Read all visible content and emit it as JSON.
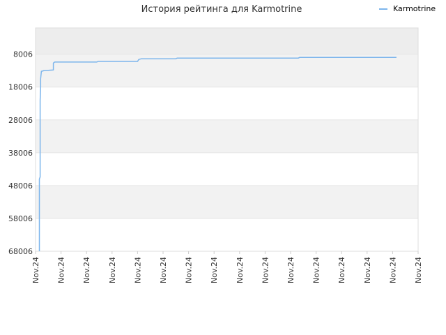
{
  "chart_data": {
    "type": "line",
    "title": "История рейтинга для Karmotrine",
    "xlabel": "",
    "ylabel": "",
    "y_inverted": true,
    "ylim": [
      68006,
      0
    ],
    "yticks": [
      8006,
      18006,
      28006,
      38006,
      48006,
      58006,
      68006
    ],
    "xticks": [
      "Nov.24",
      "Nov.24",
      "Nov.24",
      "Nov.24",
      "Nov.24",
      "Nov.24",
      "Nov.24",
      "Nov.24",
      "Nov.24",
      "Nov.24",
      "Nov.24",
      "Nov.24",
      "Nov.24",
      "Nov.24",
      "Nov.24",
      "Nov.24"
    ],
    "x_domain": [
      0,
      15
    ],
    "grid": true,
    "legend_position": "top-right",
    "series": [
      {
        "name": "Karmotrine",
        "color": "#7cb5ec",
        "points": [
          {
            "x": 0.15,
            "y": 68006
          },
          {
            "x": 0.15,
            "y": 46000
          },
          {
            "x": 0.18,
            "y": 45400
          },
          {
            "x": 0.18,
            "y": 22000
          },
          {
            "x": 0.2,
            "y": 18000
          },
          {
            "x": 0.2,
            "y": 15500
          },
          {
            "x": 0.23,
            "y": 13200
          },
          {
            "x": 0.3,
            "y": 13100
          },
          {
            "x": 0.3,
            "y": 13000
          },
          {
            "x": 0.7,
            "y": 12800
          },
          {
            "x": 0.7,
            "y": 10700
          },
          {
            "x": 0.75,
            "y": 10400
          },
          {
            "x": 2.4,
            "y": 10400
          },
          {
            "x": 2.45,
            "y": 10200
          },
          {
            "x": 4.0,
            "y": 10200
          },
          {
            "x": 4.05,
            "y": 9600
          },
          {
            "x": 4.15,
            "y": 9400
          },
          {
            "x": 5.5,
            "y": 9400
          },
          {
            "x": 5.55,
            "y": 9200
          },
          {
            "x": 10.3,
            "y": 9200
          },
          {
            "x": 10.35,
            "y": 9000
          },
          {
            "x": 14.15,
            "y": 9000
          }
        ]
      }
    ],
    "colors": {
      "band_alt": "#f2f2f2",
      "band_top": "#ededed",
      "grid": "#e6e6e6",
      "axis": "#cccccc"
    }
  }
}
